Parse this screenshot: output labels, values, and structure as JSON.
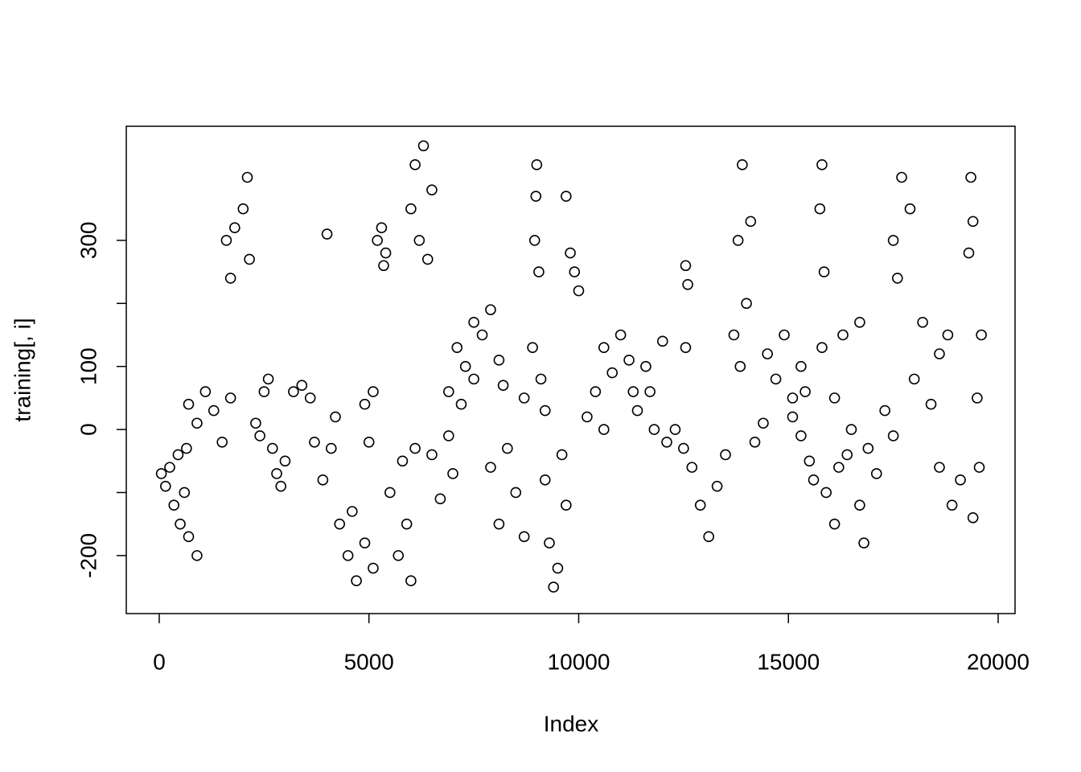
{
  "chart_data": {
    "type": "scatter",
    "x_label": "Index",
    "y_label": "training[, i]",
    "color": "#000000",
    "xlim": [
      -786,
      20403
    ],
    "ylim": [
      -292,
      481
    ],
    "xticks": [
      0,
      5000,
      10000,
      15000,
      20000
    ],
    "yticks": [
      -200,
      -100,
      0,
      100,
      200,
      300
    ],
    "x": [
      50,
      150,
      250,
      350,
      450,
      500,
      600,
      700,
      650,
      900,
      700,
      900,
      1100,
      1300,
      1500,
      1700,
      1600,
      1800,
      2000,
      2100,
      2150,
      1700,
      2300,
      2500,
      2600,
      2400,
      2700,
      2900,
      3000,
      2800,
      3200,
      3400,
      3600,
      3700,
      3900,
      4100,
      4000,
      4200,
      4300,
      4500,
      4700,
      4900,
      5100,
      4600,
      4900,
      5000,
      5100,
      5200,
      5300,
      5400,
      5350,
      5500,
      5700,
      5800,
      6000,
      5900,
      6100,
      6000,
      6100,
      6200,
      6300,
      6400,
      6500,
      6500,
      6700,
      6900,
      7000,
      6900,
      7100,
      7300,
      7500,
      7200,
      7500,
      7700,
      7900,
      8100,
      8200,
      7900,
      8100,
      8300,
      8500,
      8700,
      8700,
      8900,
      9100,
      9200,
      8950,
      9000,
      9050,
      8980,
      9200,
      9300,
      9400,
      9600,
      9700,
      9500,
      9800,
      9900,
      10000,
      9700,
      10200,
      10400,
      10600,
      10600,
      10800,
      11000,
      11300,
      11200,
      11400,
      11600,
      11800,
      12000,
      11700,
      12100,
      12300,
      12500,
      12550,
      12600,
      12550,
      12700,
      12900,
      13100,
      13300,
      13500,
      13700,
      13800,
      13900,
      14000,
      13850,
      14100,
      14200,
      14400,
      14500,
      14700,
      14900,
      15100,
      15300,
      15100,
      15300,
      15400,
      15500,
      15600,
      15750,
      15800,
      15850,
      15800,
      15900,
      16100,
      16200,
      16100,
      16300,
      16500,
      16700,
      16400,
      16700,
      16800,
      16900,
      17100,
      17300,
      17500,
      17500,
      17700,
      17900,
      17600,
      18000,
      18200,
      18400,
      18600,
      18800,
      18600,
      18900,
      19100,
      19300,
      19350,
      19400,
      19400,
      19500,
      19600,
      19550
    ],
    "y": [
      -70,
      -90,
      -60,
      -120,
      -40,
      -150,
      -100,
      -170,
      -30,
      -200,
      40,
      10,
      60,
      30,
      -20,
      50,
      300,
      320,
      350,
      400,
      270,
      240,
      10,
      60,
      80,
      -10,
      -30,
      -90,
      -50,
      -70,
      60,
      70,
      50,
      -20,
      -80,
      -30,
      310,
      20,
      -150,
      -200,
      -240,
      -180,
      -220,
      -130,
      40,
      -20,
      60,
      300,
      320,
      280,
      260,
      -100,
      -200,
      -50,
      -240,
      -150,
      -30,
      350,
      420,
      300,
      450,
      270,
      380,
      -40,
      -110,
      -10,
      -70,
      60,
      130,
      100,
      170,
      40,
      80,
      150,
      190,
      110,
      70,
      -60,
      -150,
      -30,
      -100,
      -170,
      50,
      130,
      80,
      30,
      300,
      420,
      250,
      370,
      -80,
      -180,
      -250,
      -40,
      -120,
      -220,
      280,
      250,
      220,
      370,
      20,
      60,
      0,
      130,
      90,
      150,
      60,
      110,
      30,
      100,
      0,
      140,
      60,
      -20,
      0,
      -30,
      260,
      230,
      130,
      -60,
      -120,
      -170,
      -90,
      -40,
      150,
      300,
      420,
      200,
      100,
      330,
      -20,
      10,
      120,
      80,
      150,
      50,
      100,
      20,
      -10,
      60,
      -50,
      -80,
      350,
      420,
      250,
      130,
      -100,
      -150,
      -60,
      50,
      150,
      0,
      170,
      -40,
      -120,
      -180,
      -30,
      -70,
      30,
      -10,
      300,
      400,
      350,
      240,
      80,
      170,
      40,
      120,
      150,
      -60,
      -120,
      -80,
      280,
      400,
      330,
      -140,
      50,
      150,
      -60
    ]
  }
}
